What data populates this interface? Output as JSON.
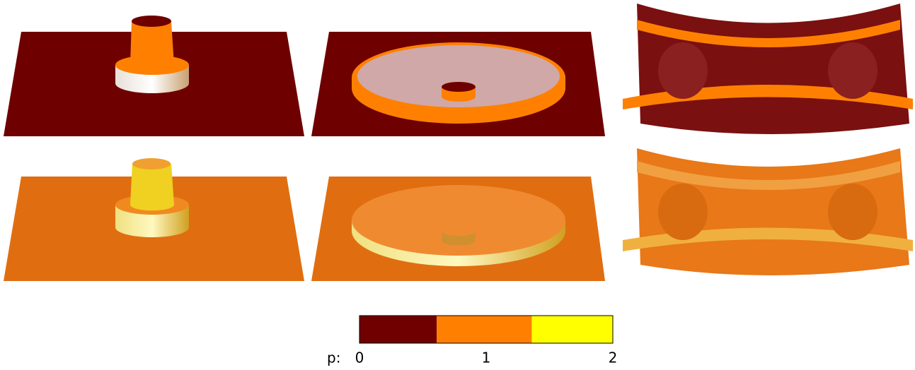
{
  "colorbar": {
    "label": "p:",
    "range": [
      0,
      2
    ],
    "ticks": [
      0,
      1,
      2
    ],
    "segments": [
      {
        "from": 0,
        "to": 0.61,
        "color": "#700000"
      },
      {
        "from": 0.61,
        "to": 1.36,
        "color": "#ff7f00"
      },
      {
        "from": 1.36,
        "to": 2,
        "color": "#ffff00"
      }
    ]
  }
}
